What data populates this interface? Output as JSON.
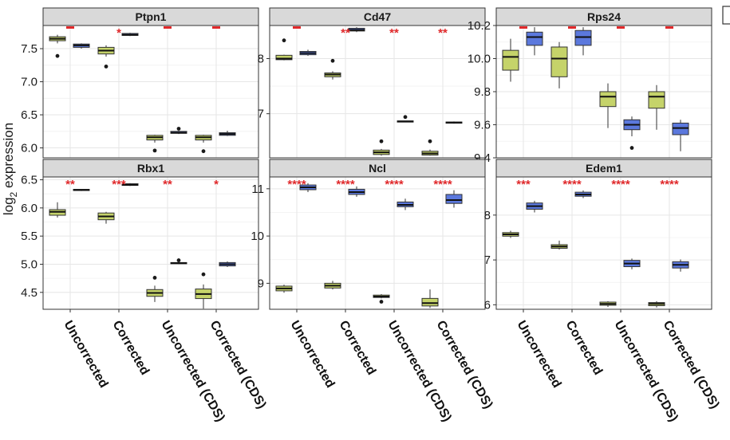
{
  "chart_data": {
    "type": "boxplot",
    "y_axis_label": {
      "main": "log",
      "sub": "2",
      "rest": " expression"
    },
    "categories": [
      "Uncorrected",
      "Corrected",
      "Uncorrected (CDS)",
      "Corrected (CDS)"
    ],
    "colors": {
      "group1": "#c5d36a",
      "group2": "#5b78dd",
      "significance": "#e0282a"
    },
    "panels": [
      {
        "title": "Ptpn1",
        "ylim": [
          5.85,
          7.85
        ],
        "ticks": [
          6.0,
          6.5,
          7.0,
          7.5
        ],
        "tick_labels": [
          "6.0",
          "6.5",
          "7.0",
          "7.5"
        ],
        "significance": [
          "—",
          "*",
          "—",
          "—"
        ],
        "boxes": [
          [
            {
              "q1": 7.62,
              "median": 7.65,
              "q3": 7.68,
              "min": 7.58,
              "max": 7.71,
              "outliers": [
                7.39
              ]
            },
            {
              "q1": 7.52,
              "median": 7.55,
              "q3": 7.57,
              "min": 7.5,
              "max": 7.58,
              "outliers": []
            }
          ],
          [
            {
              "q1": 7.42,
              "median": 7.47,
              "q3": 7.52,
              "min": 7.38,
              "max": 7.55,
              "outliers": [
                7.23
              ]
            },
            {
              "q1": 7.7,
              "median": 7.71,
              "q3": 7.73,
              "min": 7.69,
              "max": 7.74,
              "outliers": []
            }
          ],
          [
            {
              "q1": 6.12,
              "median": 6.16,
              "q3": 6.19,
              "min": 6.08,
              "max": 6.2,
              "outliers": [
                5.96
              ]
            },
            {
              "q1": 6.22,
              "median": 6.23,
              "q3": 6.25,
              "min": 6.21,
              "max": 6.26,
              "outliers": [
                6.29
              ]
            }
          ],
          [
            {
              "q1": 6.12,
              "median": 6.16,
              "q3": 6.19,
              "min": 6.08,
              "max": 6.2,
              "outliers": [
                5.95
              ]
            },
            {
              "q1": 6.19,
              "median": 6.21,
              "q3": 6.23,
              "min": 6.18,
              "max": 6.26,
              "outliers": []
            }
          ]
        ]
      },
      {
        "title": "Cd47",
        "ylim": [
          6.2,
          8.6
        ],
        "ticks": [
          7,
          8
        ],
        "tick_labels": [
          "7",
          "8"
        ],
        "significance": [
          "—",
          "**",
          "**",
          "**"
        ],
        "boxes": [
          [
            {
              "q1": 7.98,
              "median": 8.0,
              "q3": 8.06,
              "min": 7.97,
              "max": 8.07,
              "outliers": [
                8.33
              ]
            },
            {
              "q1": 8.07,
              "median": 8.1,
              "q3": 8.13,
              "min": 8.05,
              "max": 8.16,
              "outliers": []
            }
          ],
          [
            {
              "q1": 7.67,
              "median": 7.71,
              "q3": 7.74,
              "min": 7.62,
              "max": 7.77,
              "outliers": [
                7.96
              ]
            },
            {
              "q1": 8.5,
              "median": 8.52,
              "q3": 8.55,
              "min": 8.48,
              "max": 8.57,
              "outliers": []
            }
          ],
          [
            {
              "q1": 6.26,
              "median": 6.3,
              "q3": 6.34,
              "min": 6.24,
              "max": 6.36,
              "outliers": [
                6.5
              ]
            },
            {
              "q1": 6.85,
              "median": 6.86,
              "q3": 6.87,
              "min": 6.85,
              "max": 6.87,
              "outliers": [
                6.94
              ]
            }
          ],
          [
            {
              "q1": 6.25,
              "median": 6.28,
              "q3": 6.32,
              "min": 6.24,
              "max": 6.35,
              "outliers": [
                6.5
              ]
            },
            {
              "q1": 6.83,
              "median": 6.84,
              "q3": 6.85,
              "min": 6.82,
              "max": 6.86,
              "outliers": []
            }
          ]
        ]
      },
      {
        "title": "Rps24",
        "ylim": [
          9.4,
          10.2
        ],
        "ticks": [
          9.4,
          9.6,
          9.8,
          10.0,
          10.2
        ],
        "tick_labels": [
          "9.4",
          "9.6",
          "9.8",
          "10.0",
          "10.2"
        ],
        "significance": [
          "—",
          "—",
          "—",
          "—"
        ],
        "boxes": [
          [
            {
              "q1": 9.93,
              "median": 10.01,
              "q3": 10.05,
              "min": 9.86,
              "max": 10.12,
              "outliers": []
            },
            {
              "q1": 10.08,
              "median": 10.13,
              "q3": 10.16,
              "min": 10.02,
              "max": 10.19,
              "outliers": []
            }
          ],
          [
            {
              "q1": 9.89,
              "median": 10.0,
              "q3": 10.07,
              "min": 9.82,
              "max": 10.1,
              "outliers": []
            },
            {
              "q1": 10.08,
              "median": 10.13,
              "q3": 10.17,
              "min": 10.02,
              "max": 10.19,
              "outliers": []
            }
          ],
          [
            {
              "q1": 9.71,
              "median": 9.77,
              "q3": 9.8,
              "min": 9.58,
              "max": 9.85,
              "outliers": []
            },
            {
              "q1": 9.57,
              "median": 9.6,
              "q3": 9.63,
              "min": 9.53,
              "max": 9.65,
              "outliers": [
                9.46
              ]
            }
          ],
          [
            {
              "q1": 9.7,
              "median": 9.77,
              "q3": 9.8,
              "min": 9.57,
              "max": 9.84,
              "outliers": []
            },
            {
              "q1": 9.54,
              "median": 9.58,
              "q3": 9.61,
              "min": 9.44,
              "max": 9.63,
              "outliers": []
            }
          ]
        ]
      },
      {
        "title": "Rbx1",
        "ylim": [
          4.2,
          6.55
        ],
        "ticks": [
          4.5,
          5.0,
          5.5,
          6.0,
          6.5
        ],
        "tick_labels": [
          "4.5",
          "5.0",
          "5.5",
          "6.0",
          "6.5"
        ],
        "significance": [
          "**",
          "***",
          "**",
          "*"
        ],
        "boxes": [
          [
            {
              "q1": 5.87,
              "median": 5.93,
              "q3": 5.97,
              "min": 5.83,
              "max": 6.1,
              "outliers": []
            },
            {
              "q1": 6.31,
              "median": 6.32,
              "q3": 6.33,
              "min": 6.3,
              "max": 6.33,
              "outliers": []
            }
          ],
          [
            {
              "q1": 5.79,
              "median": 5.85,
              "q3": 5.91,
              "min": 5.72,
              "max": 5.93,
              "outliers": []
            },
            {
              "q1": 6.4,
              "median": 6.41,
              "q3": 6.43,
              "min": 6.39,
              "max": 6.44,
              "outliers": []
            }
          ],
          [
            {
              "q1": 4.43,
              "median": 4.49,
              "q3": 4.55,
              "min": 4.33,
              "max": 4.62,
              "outliers": [
                4.76
              ]
            },
            {
              "q1": 5.01,
              "median": 5.02,
              "q3": 5.03,
              "min": 5.0,
              "max": 5.04,
              "outliers": [
                5.07
              ]
            }
          ],
          [
            {
              "q1": 4.39,
              "median": 4.47,
              "q3": 4.56,
              "min": 4.21,
              "max": 4.64,
              "outliers": [
                4.82
              ]
            },
            {
              "q1": 4.97,
              "median": 5.0,
              "q3": 5.03,
              "min": 4.95,
              "max": 5.05,
              "outliers": []
            }
          ]
        ]
      },
      {
        "title": "Ncl",
        "ylim": [
          8.45,
          11.25
        ],
        "ticks": [
          9,
          10,
          11
        ],
        "tick_labels": [
          "9",
          "10",
          "11"
        ],
        "significance": [
          "****",
          "****",
          "****",
          "****"
        ],
        "boxes": [
          [
            {
              "q1": 8.84,
              "median": 8.89,
              "q3": 8.94,
              "min": 8.8,
              "max": 8.97,
              "outliers": []
            },
            {
              "q1": 10.98,
              "median": 11.03,
              "q3": 11.08,
              "min": 10.93,
              "max": 11.12,
              "outliers": []
            }
          ],
          [
            {
              "q1": 8.9,
              "median": 8.95,
              "q3": 9.0,
              "min": 8.87,
              "max": 9.05,
              "outliers": []
            },
            {
              "q1": 10.88,
              "median": 10.93,
              "q3": 10.99,
              "min": 10.83,
              "max": 11.05,
              "outliers": []
            }
          ],
          [
            {
              "q1": 8.7,
              "median": 8.72,
              "q3": 8.75,
              "min": 8.68,
              "max": 8.77,
              "outliers": [
                8.61
              ]
            },
            {
              "q1": 10.62,
              "median": 10.66,
              "q3": 10.72,
              "min": 10.55,
              "max": 10.79,
              "outliers": []
            }
          ],
          [
            {
              "q1": 8.52,
              "median": 8.58,
              "q3": 8.68,
              "min": 8.48,
              "max": 8.87,
              "outliers": []
            },
            {
              "q1": 10.69,
              "median": 10.76,
              "q3": 10.88,
              "min": 10.6,
              "max": 10.97,
              "outliers": []
            }
          ]
        ]
      },
      {
        "title": "Edem1",
        "ylim": [
          5.9,
          8.85
        ],
        "ticks": [
          6,
          7,
          8
        ],
        "tick_labels": [
          "6",
          "7",
          "8"
        ],
        "significance": [
          "***",
          "****",
          "****",
          "****"
        ],
        "boxes": [
          [
            {
              "q1": 7.53,
              "median": 7.57,
              "q3": 7.61,
              "min": 7.49,
              "max": 7.65,
              "outliers": []
            },
            {
              "q1": 8.13,
              "median": 8.2,
              "q3": 8.27,
              "min": 8.06,
              "max": 8.32,
              "outliers": []
            }
          ],
          [
            {
              "q1": 7.26,
              "median": 7.3,
              "q3": 7.34,
              "min": 7.23,
              "max": 7.43,
              "outliers": []
            },
            {
              "q1": 8.42,
              "median": 8.46,
              "q3": 8.51,
              "min": 8.38,
              "max": 8.55,
              "outliers": []
            }
          ],
          [
            {
              "q1": 5.99,
              "median": 6.02,
              "q3": 6.06,
              "min": 5.95,
              "max": 6.08,
              "outliers": []
            },
            {
              "q1": 6.85,
              "median": 6.92,
              "q3": 6.99,
              "min": 6.79,
              "max": 7.03,
              "outliers": []
            }
          ],
          [
            {
              "q1": 5.98,
              "median": 6.02,
              "q3": 6.05,
              "min": 5.94,
              "max": 6.08,
              "outliers": []
            },
            {
              "q1": 6.82,
              "median": 6.89,
              "q3": 6.96,
              "min": 6.74,
              "max": 7.01,
              "outliers": []
            }
          ]
        ]
      }
    ]
  }
}
